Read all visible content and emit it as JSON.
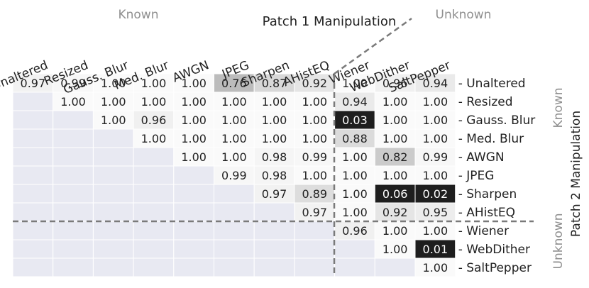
{
  "chart_data": {
    "type": "heatmap",
    "title": "Patch 1 Manipulation",
    "ylabel": "Patch 2 Manipulation",
    "x_groups": [
      {
        "label": "Known",
        "count": 8
      },
      {
        "label": "Unknown",
        "count": 3
      }
    ],
    "y_groups": [
      {
        "label": "Known",
        "count": 8
      },
      {
        "label": "Unknown",
        "count": 3
      }
    ],
    "categories": [
      "Unaltered",
      "Resized",
      "Gauss. Blur",
      "Med. Blur",
      "AWGN",
      "JPEG",
      "Sharpen",
      "AHistEQ",
      "Wiener",
      "WebDither",
      "SaltPepper"
    ],
    "rows": [
      "Unaltered",
      "Resized",
      "Gauss. Blur",
      "Med. Blur",
      "AWGN",
      "JPEG",
      "Sharpen",
      "AHistEQ",
      "Wiener",
      "WebDither",
      "SaltPepper"
    ],
    "values": [
      [
        "0.97",
        "0.99",
        "1.00",
        "1.00",
        "1.00",
        "0.76",
        "0.87",
        "0.92",
        "1.00",
        "0.96",
        "0.94"
      ],
      [
        null,
        "1.00",
        "1.00",
        "1.00",
        "1.00",
        "1.00",
        "1.00",
        "1.00",
        "0.94",
        "1.00",
        "1.00"
      ],
      [
        null,
        null,
        "1.00",
        "0.96",
        "1.00",
        "1.00",
        "1.00",
        "1.00",
        "0.03",
        "1.00",
        "1.00"
      ],
      [
        null,
        null,
        null,
        "1.00",
        "1.00",
        "1.00",
        "1.00",
        "1.00",
        "0.88",
        "1.00",
        "1.00"
      ],
      [
        null,
        null,
        null,
        null,
        "1.00",
        "1.00",
        "0.98",
        "0.99",
        "1.00",
        "0.82",
        "0.99"
      ],
      [
        null,
        null,
        null,
        null,
        null,
        "0.99",
        "0.98",
        "1.00",
        "1.00",
        "1.00",
        "1.00"
      ],
      [
        null,
        null,
        null,
        null,
        null,
        null,
        "0.97",
        "0.89",
        "1.00",
        "0.06",
        "0.02"
      ],
      [
        null,
        null,
        null,
        null,
        null,
        null,
        null,
        "0.97",
        "1.00",
        "0.92",
        "0.95"
      ],
      [
        null,
        null,
        null,
        null,
        null,
        null,
        null,
        null,
        "0.96",
        "1.00",
        "1.00"
      ],
      [
        null,
        null,
        null,
        null,
        null,
        null,
        null,
        null,
        null,
        "1.00",
        "0.01"
      ],
      [
        null,
        null,
        null,
        null,
        null,
        null,
        null,
        null,
        null,
        null,
        "1.00"
      ]
    ],
    "colors": {
      "empty": "#e8e9f2",
      "group_label": "#8f8f8f",
      "divider": "#7a7a7a",
      "text_dark": "#222222",
      "text_light": "#ffffff"
    }
  }
}
